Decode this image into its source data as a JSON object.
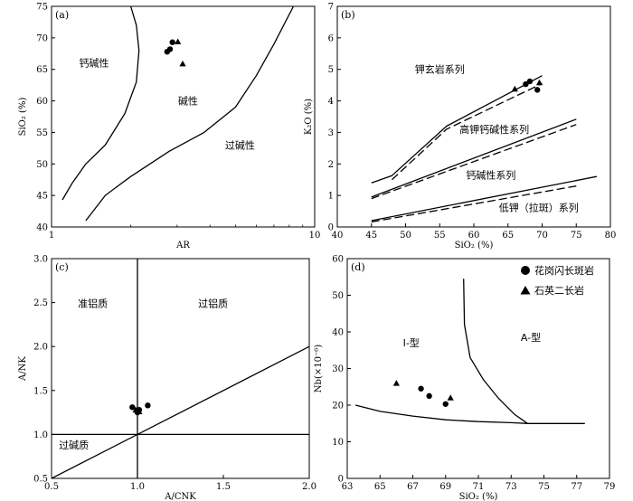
{
  "chart_data": [
    {
      "type": "scatter",
      "panel_label": "(a)",
      "xlabel": "AR",
      "ylabel": "SiO₂ (%)",
      "xscale": "log",
      "xlim": [
        1,
        10
      ],
      "ylim": [
        40,
        75
      ],
      "xticks": [
        "1",
        "10"
      ],
      "yticks": [
        "40",
        "45",
        "50",
        "55",
        "60",
        "65",
        "70",
        "75"
      ],
      "field_labels": [
        {
          "text": "钙碱性",
          "x": 1.45,
          "y": 66
        },
        {
          "text": "碱性",
          "x": 3.3,
          "y": 60
        },
        {
          "text": "过碱性",
          "x": 5.2,
          "y": 53
        }
      ],
      "boundaries": [
        {
          "x": [
            1.1,
            1.2,
            1.35,
            1.6,
            1.9,
            2.1,
            2.15,
            2.1,
            2.0
          ],
          "y": [
            44.3,
            47,
            50,
            53,
            58,
            63,
            68,
            72,
            75
          ]
        },
        {
          "x": [
            1.35,
            1.6,
            2.0,
            2.8,
            3.8,
            5.0,
            6.0,
            7.0,
            8.3
          ],
          "y": [
            41,
            45,
            48,
            52,
            55,
            59,
            64,
            69,
            75
          ]
        }
      ],
      "series": [
        {
          "name": "花岗闪长斑岩",
          "marker": "circle",
          "points": [
            [
              2.75,
              67.8
            ],
            [
              2.82,
              68.2
            ],
            [
              2.88,
              69.3
            ]
          ]
        },
        {
          "name": "石英二长岩",
          "marker": "triangle",
          "points": [
            [
              3.02,
              69.4
            ],
            [
              3.15,
              65.9
            ]
          ]
        }
      ]
    },
    {
      "type": "scatter",
      "panel_label": "(b)",
      "xlabel": "SiO₂ (%)",
      "ylabel": "K₂O (%)",
      "xlim": [
        40,
        80
      ],
      "ylim": [
        0,
        7
      ],
      "xticks": [
        "40",
        "45",
        "50",
        "55",
        "60",
        "65",
        "70",
        "75",
        "80"
      ],
      "yticks": [
        "0",
        "1",
        "2",
        "3",
        "4",
        "5",
        "6",
        "7"
      ],
      "field_labels": [
        {
          "text": "钾玄岩系列",
          "x": 55,
          "y": 5.0
        },
        {
          "text": "高钾钙碱性系列",
          "x": 63,
          "y": 3.1
        },
        {
          "text": "钙碱性系列",
          "x": 62.5,
          "y": 1.65
        },
        {
          "text": "低钾（拉斑）系列",
          "x": 69.5,
          "y": 0.62
        }
      ],
      "boundaries_solid": [
        {
          "x": [
            45,
            48,
            56,
            70
          ],
          "y": [
            1.4,
            1.63,
            3.2,
            4.8
          ]
        },
        {
          "x": [
            45,
            75
          ],
          "y": [
            0.95,
            3.42
          ]
        },
        {
          "x": [
            45,
            78
          ],
          "y": [
            0.2,
            1.6
          ]
        }
      ],
      "boundaries_dashed": [
        {
          "x": [
            48,
            56,
            70
          ],
          "y": [
            1.5,
            3.1,
            4.55
          ]
        },
        {
          "x": [
            45,
            75
          ],
          "y": [
            0.9,
            3.25
          ]
        },
        {
          "x": [
            45,
            75
          ],
          "y": [
            0.16,
            1.3
          ]
        }
      ],
      "series": [
        {
          "name": "花岗闪长斑岩",
          "marker": "circle",
          "points": [
            [
              67.6,
              4.53
            ],
            [
              68.2,
              4.62
            ],
            [
              69.3,
              4.35
            ]
          ]
        },
        {
          "name": "石英二长岩",
          "marker": "triangle",
          "points": [
            [
              66.0,
              4.38
            ],
            [
              69.6,
              4.58
            ]
          ]
        }
      ]
    },
    {
      "type": "scatter",
      "panel_label": "(c)",
      "xlabel": "A/CNK",
      "ylabel": "A/NK",
      "xlim": [
        0.5,
        2.0
      ],
      "ylim": [
        0.5,
        3.0
      ],
      "xticks": [
        "0.5",
        "1.0",
        "1.5",
        "2.0"
      ],
      "yticks": [
        "0.5",
        "1.0",
        "1.5",
        "2.0",
        "2.5",
        "3.0"
      ],
      "field_labels": [
        {
          "text": "准铝质",
          "x": 0.74,
          "y": 2.49
        },
        {
          "text": "过铝质",
          "x": 1.44,
          "y": 2.49
        },
        {
          "text": "过碱质",
          "x": 0.63,
          "y": 0.88
        }
      ],
      "boundaries": [
        {
          "x": [
            1.0,
            1.0
          ],
          "y": [
            0.5,
            3.0
          ]
        },
        {
          "x": [
            0.5,
            2.0
          ],
          "y": [
            1.0,
            1.0
          ]
        },
        {
          "x": [
            0.5,
            2.0
          ],
          "y": [
            0.5,
            2.0
          ]
        }
      ],
      "series": [
        {
          "name": "花岗闪长斑岩",
          "marker": "circle",
          "points": [
            [
              0.97,
              1.31
            ],
            [
              1.01,
              1.28
            ],
            [
              1.06,
              1.33
            ],
            [
              1.0,
              1.25
            ]
          ]
        },
        {
          "name": "石英二长岩",
          "marker": "triangle",
          "points": [
            [
              0.99,
              1.28
            ],
            [
              1.01,
              1.26
            ]
          ]
        }
      ]
    },
    {
      "type": "scatter",
      "panel_label": "(d)",
      "xlabel": "SiO₂ (%)",
      "ylabel": "Nb(×10⁻⁶)",
      "xlim": [
        63,
        79
      ],
      "ylim": [
        0,
        60
      ],
      "xticks": [
        "63",
        "65",
        "67",
        "69",
        "71",
        "73",
        "75",
        "77",
        "79"
      ],
      "yticks": [
        "0",
        "10",
        "20",
        "30",
        "40",
        "50",
        "60"
      ],
      "field_labels": [
        {
          "text": "I-型",
          "x": 66.9,
          "y": 37
        },
        {
          "text": "A-型",
          "x": 74.2,
          "y": 38.5
        }
      ],
      "boundaries": [
        {
          "x": [
            63.5,
            65,
            67,
            69,
            71,
            73,
            74,
            75,
            77.5
          ],
          "y": [
            20,
            18.3,
            17,
            16,
            15.5,
            15.2,
            15,
            15,
            15
          ]
        },
        {
          "x": [
            70.1,
            70.15,
            70.5,
            71.3,
            72.2,
            73.2,
            74.0
          ],
          "y": [
            54.5,
            42,
            33,
            27,
            22,
            17.5,
            15
          ]
        }
      ],
      "series": [
        {
          "name": "花岗闪长斑岩",
          "marker": "circle",
          "points": [
            [
              67.5,
              24.5
            ],
            [
              68.0,
              22.5
            ],
            [
              69.0,
              20.3
            ]
          ]
        },
        {
          "name": "石英二长岩",
          "marker": "triangle",
          "points": [
            [
              66.0,
              26
            ],
            [
              69.3,
              22
            ]
          ]
        }
      ],
      "legend": {
        "placement": "top-right",
        "entries": [
          {
            "marker": "circle",
            "label": "花岗闪长斑岩"
          },
          {
            "marker": "triangle",
            "label": "石英二长岩"
          }
        ]
      }
    }
  ]
}
